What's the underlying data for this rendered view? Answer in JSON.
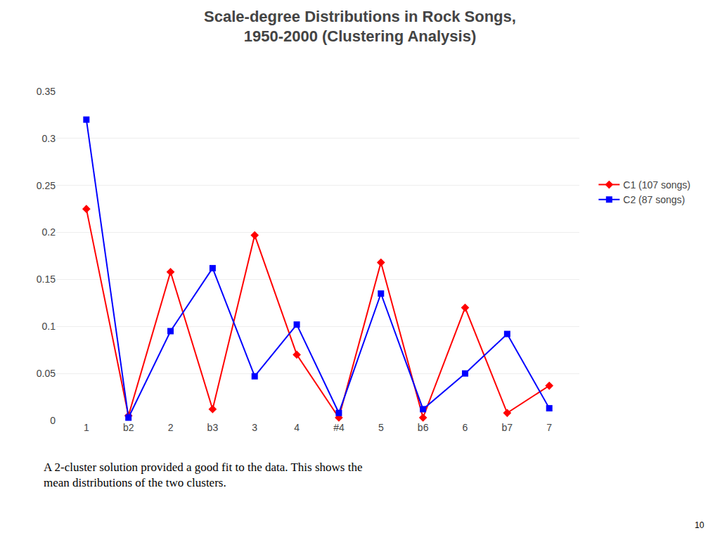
{
  "chart_data": {
    "type": "line",
    "title": "Scale-degree Distributions in Rock Songs,\n1950-2000 (Clustering Analysis)",
    "categories": [
      "1",
      "b2",
      "2",
      "b3",
      "3",
      "4",
      "#4",
      "5",
      "b6",
      "6",
      "b7",
      "7"
    ],
    "series": [
      {
        "name": "C1 (107 songs)",
        "color": "#ff0000",
        "marker": "diamond",
        "values": [
          0.225,
          0.005,
          0.158,
          0.012,
          0.197,
          0.07,
          0.003,
          0.168,
          0.003,
          0.12,
          0.008,
          0.037
        ]
      },
      {
        "name": "C2 (87 songs)",
        "color": "#0000ff",
        "marker": "square",
        "values": [
          0.32,
          0.003,
          0.095,
          0.162,
          0.047,
          0.102,
          0.008,
          0.135,
          0.012,
          0.05,
          0.092,
          0.013
        ]
      }
    ],
    "ylim": [
      0,
      0.35
    ],
    "yticks": [
      0,
      0.05,
      0.1,
      0.15,
      0.2,
      0.25,
      0.3,
      0.35
    ],
    "grid": true,
    "legend": "right",
    "annotations": [
      "A 2-cluster solution provided a good fit to the data. This shows the\nmean distributions of the two clusters.",
      "10"
    ]
  }
}
